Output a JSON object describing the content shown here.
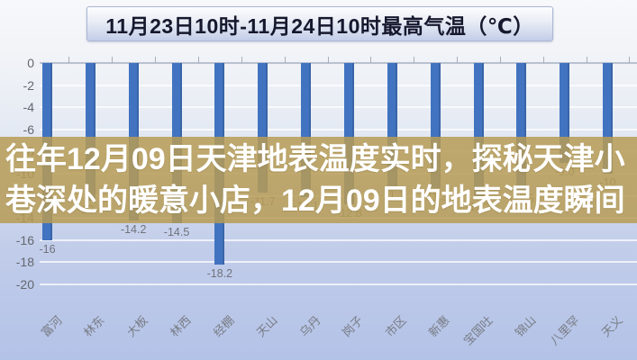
{
  "title": "11月23日10时-11月24日10时最高气温（℃）",
  "overlay": {
    "line1": "往年12月09日天津地表温度实时，探秘天津小",
    "line2": "巷深处的暖意小店，12月09日的地表温度瞬间"
  },
  "chart_data": {
    "type": "bar",
    "title": "11月23日10时-11月24日10时最高气温（℃）",
    "categories": [
      "富河",
      "林东",
      "大板",
      "林西",
      "经棚",
      "天山",
      "乌丹",
      "岗子",
      "市区",
      "新惠",
      "宝国吐",
      "锦山",
      "八里罕",
      "天义"
    ],
    "values": [
      -16,
      -12.4,
      -14.2,
      -14.5,
      -18.2,
      -11.7,
      -12.1,
      -12.8,
      -11.1,
      -11.3,
      -12.2,
      -11.5,
      -9.0,
      -10
    ],
    "data_labels": [
      "-16",
      "-12.4",
      "-14.2",
      "-14.5",
      "-18.2",
      "-11.7",
      "-12.1",
      "-12.8",
      "-11.1",
      "-11.3",
      "-12.2",
      "-11.5",
      "-9.0",
      "-10"
    ],
    "xlabel": "",
    "ylabel": "",
    "ylim": [
      -20,
      0
    ],
    "yticks": [
      0,
      -2,
      -4,
      -6,
      -8,
      -10,
      -12,
      -14,
      -16,
      -18,
      -20
    ],
    "grid": true,
    "legend": "none",
    "bar_color": "#4173c0"
  },
  "colors": {
    "bar": "#4173c0",
    "banner": "rgba(183,156,86,0.86)",
    "axis_text": "#63676e",
    "title_text": "#16182e"
  }
}
